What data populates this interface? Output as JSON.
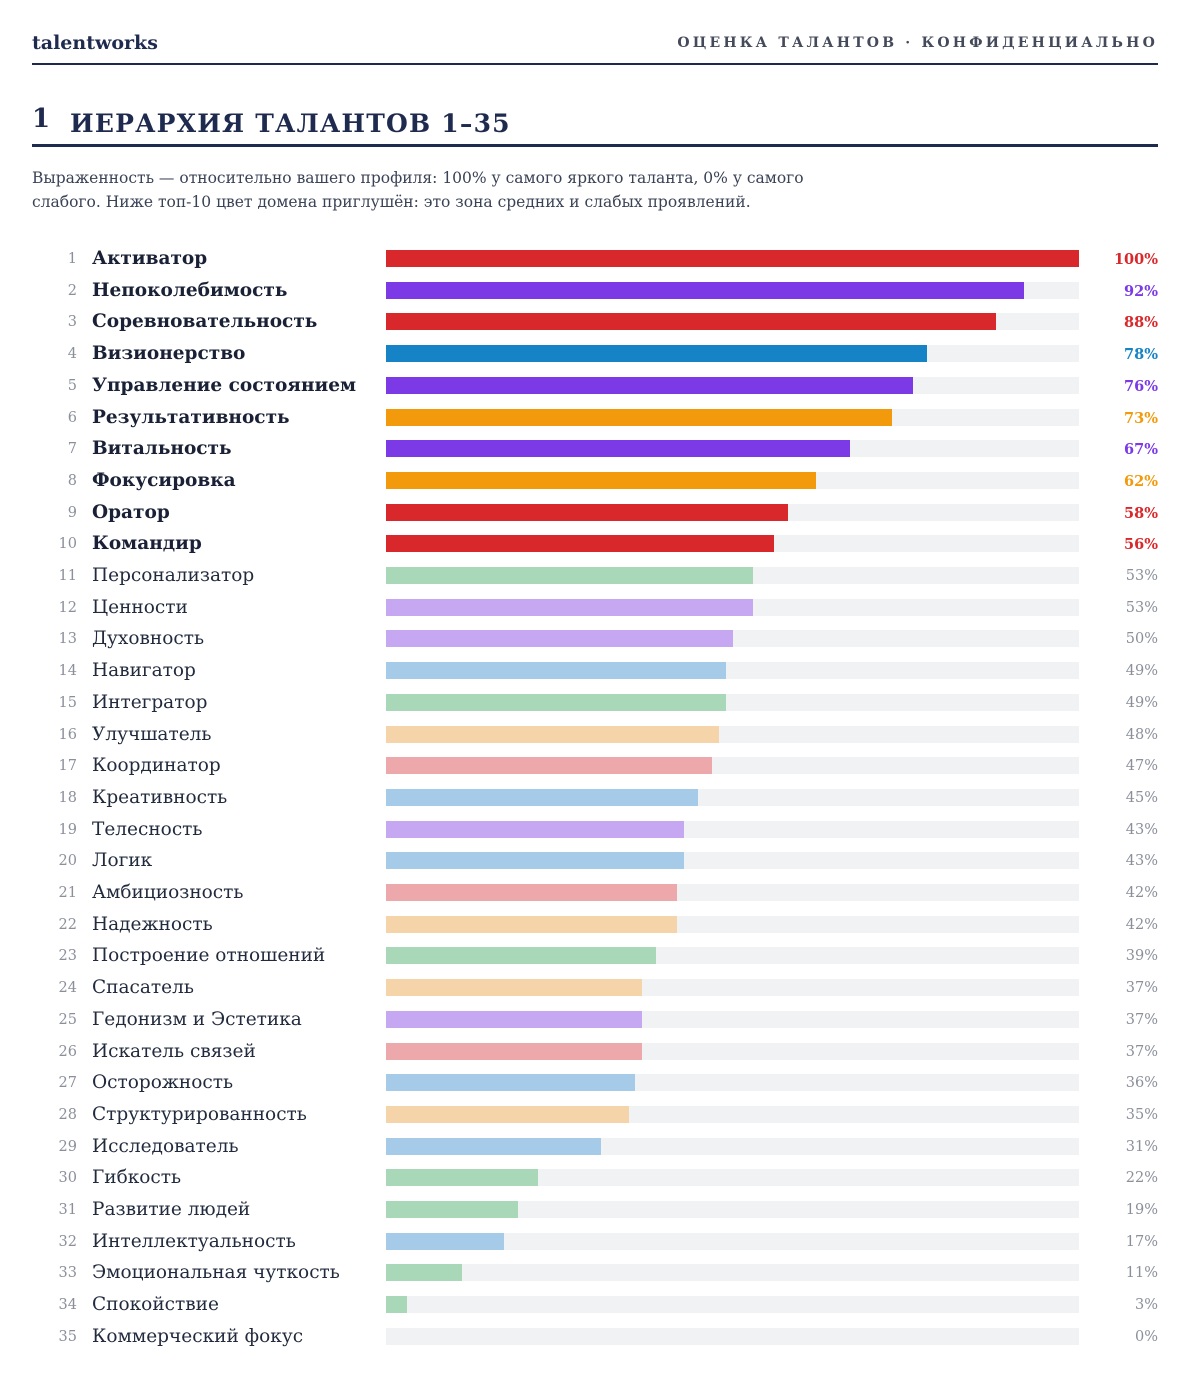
{
  "header": {
    "brand": "talentworks",
    "meta": "ОЦЕНКА ТАЛАНТОВ · КОНФИДЕНЦИАЛЬНО"
  },
  "section": {
    "number": "1",
    "title": "ИЕРАРХИЯ ТАЛАНТОВ 1–35",
    "description": "Выраженность — относительно вашего профиля: 100% у самого яркого таланта, 0% у самого слабого. Ниже топ-10 цвет домена приглушён: это зона средних и слабых проявлений."
  },
  "colors": {
    "red": "#d9282b",
    "purple": "#7b3ae6",
    "blue": "#1683c6",
    "orange": "#f29a0b",
    "muted_green": "#a8d8b8",
    "muted_purple": "#c6a8f2",
    "muted_blue": "#a6cbe8",
    "muted_orange": "#f4d4a8",
    "muted_red": "#eca8aa",
    "track": "#f1f2f4"
  },
  "chart_data": {
    "type": "bar",
    "orientation": "horizontal",
    "xlim": [
      0,
      100
    ],
    "unit": "%",
    "items": [
      {
        "rank": 1,
        "name": "Активатор",
        "value": 100,
        "label": "100%",
        "color": "#d9282b",
        "top": true
      },
      {
        "rank": 2,
        "name": "Непоколебимость",
        "value": 92,
        "label": "92%",
        "color": "#7b3ae6",
        "top": true
      },
      {
        "rank": 3,
        "name": "Соревновательность",
        "value": 88,
        "label": "88%",
        "color": "#d9282b",
        "top": true
      },
      {
        "rank": 4,
        "name": "Визионерство",
        "value": 78,
        "label": "78%",
        "color": "#1683c6",
        "top": true
      },
      {
        "rank": 5,
        "name": "Управление состоянием",
        "value": 76,
        "label": "76%",
        "color": "#7b3ae6",
        "top": true
      },
      {
        "rank": 6,
        "name": "Результативность",
        "value": 73,
        "label": "73%",
        "color": "#f29a0b",
        "top": true
      },
      {
        "rank": 7,
        "name": "Витальность",
        "value": 67,
        "label": "67%",
        "color": "#7b3ae6",
        "top": true
      },
      {
        "rank": 8,
        "name": "Фокусировка",
        "value": 62,
        "label": "62%",
        "color": "#f29a0b",
        "top": true
      },
      {
        "rank": 9,
        "name": "Оратор",
        "value": 58,
        "label": "58%",
        "color": "#d9282b",
        "top": true
      },
      {
        "rank": 10,
        "name": "Командир",
        "value": 56,
        "label": "56%",
        "color": "#d9282b",
        "top": true
      },
      {
        "rank": 11,
        "name": "Персонализатор",
        "value": 53,
        "label": "53%",
        "color": "#a8d8b8",
        "top": false
      },
      {
        "rank": 12,
        "name": "Ценности",
        "value": 53,
        "label": "53%",
        "color": "#c6a8f2",
        "top": false
      },
      {
        "rank": 13,
        "name": "Духовность",
        "value": 50,
        "label": "50%",
        "color": "#c6a8f2",
        "top": false
      },
      {
        "rank": 14,
        "name": "Навигатор",
        "value": 49,
        "label": "49%",
        "color": "#a6cbe8",
        "top": false
      },
      {
        "rank": 15,
        "name": "Интегратор",
        "value": 49,
        "label": "49%",
        "color": "#a8d8b8",
        "top": false
      },
      {
        "rank": 16,
        "name": "Улучшатель",
        "value": 48,
        "label": "48%",
        "color": "#f4d4a8",
        "top": false
      },
      {
        "rank": 17,
        "name": "Координатор",
        "value": 47,
        "label": "47%",
        "color": "#eca8aa",
        "top": false
      },
      {
        "rank": 18,
        "name": "Креативность",
        "value": 45,
        "label": "45%",
        "color": "#a6cbe8",
        "top": false
      },
      {
        "rank": 19,
        "name": "Телесность",
        "value": 43,
        "label": "43%",
        "color": "#c6a8f2",
        "top": false
      },
      {
        "rank": 20,
        "name": "Логик",
        "value": 43,
        "label": "43%",
        "color": "#a6cbe8",
        "top": false
      },
      {
        "rank": 21,
        "name": "Амбициозность",
        "value": 42,
        "label": "42%",
        "color": "#eca8aa",
        "top": false
      },
      {
        "rank": 22,
        "name": "Надежность",
        "value": 42,
        "label": "42%",
        "color": "#f4d4a8",
        "top": false
      },
      {
        "rank": 23,
        "name": "Построение отношений",
        "value": 39,
        "label": "39%",
        "color": "#a8d8b8",
        "top": false
      },
      {
        "rank": 24,
        "name": "Спасатель",
        "value": 37,
        "label": "37%",
        "color": "#f4d4a8",
        "top": false
      },
      {
        "rank": 25,
        "name": "Гедонизм и Эстетика",
        "value": 37,
        "label": "37%",
        "color": "#c6a8f2",
        "top": false
      },
      {
        "rank": 26,
        "name": "Искатель связей",
        "value": 37,
        "label": "37%",
        "color": "#eca8aa",
        "top": false
      },
      {
        "rank": 27,
        "name": "Осторожность",
        "value": 36,
        "label": "36%",
        "color": "#a6cbe8",
        "top": false
      },
      {
        "rank": 28,
        "name": "Структурированность",
        "value": 35,
        "label": "35%",
        "color": "#f4d4a8",
        "top": false
      },
      {
        "rank": 29,
        "name": "Исследователь",
        "value": 31,
        "label": "31%",
        "color": "#a6cbe8",
        "top": false
      },
      {
        "rank": 30,
        "name": "Гибкость",
        "value": 22,
        "label": "22%",
        "color": "#a8d8b8",
        "top": false
      },
      {
        "rank": 31,
        "name": "Развитие людей",
        "value": 19,
        "label": "19%",
        "color": "#a8d8b8",
        "top": false
      },
      {
        "rank": 32,
        "name": "Интеллектуальность",
        "value": 17,
        "label": "17%",
        "color": "#a6cbe8",
        "top": false
      },
      {
        "rank": 33,
        "name": "Эмоциональная чуткость",
        "value": 11,
        "label": "11%",
        "color": "#a8d8b8",
        "top": false
      },
      {
        "rank": 34,
        "name": "Спокойствие",
        "value": 3,
        "label": "3%",
        "color": "#a8d8b8",
        "top": false
      },
      {
        "rank": 35,
        "name": "Коммерческий фокус",
        "value": 0,
        "label": "0%",
        "color": "#a8d8b8",
        "top": false
      }
    ]
  }
}
